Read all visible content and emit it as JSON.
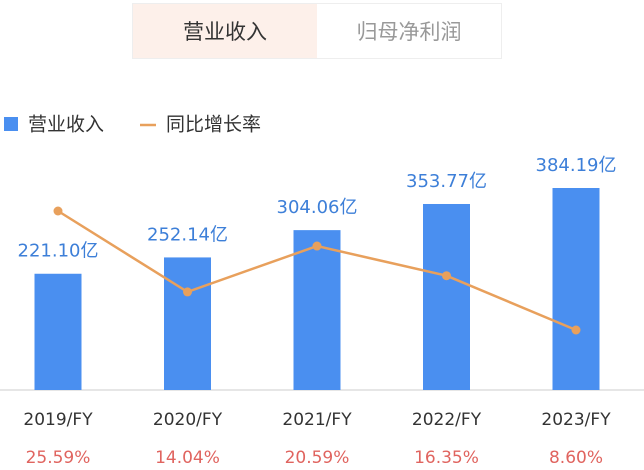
{
  "tabs": [
    {
      "label": "营业收入",
      "active": true
    },
    {
      "label": "归母净利润",
      "active": false
    }
  ],
  "chart_data": {
    "type": "bar",
    "categories": [
      "2019/FY",
      "2020/FY",
      "2021/FY",
      "2022/FY",
      "2023/FY"
    ],
    "series": [
      {
        "name": "营业收入",
        "color": "#4a8ff0",
        "values": [
          221.1,
          252.14,
          304.06,
          353.77,
          384.19
        ],
        "value_labels": [
          "221.10亿",
          "252.14亿",
          "304.06亿",
          "353.77亿",
          "384.19亿"
        ]
      },
      {
        "name": "同比增长率",
        "type": "line",
        "color": "#e8a05c",
        "values": [
          25.59,
          14.04,
          20.59,
          16.35,
          8.6
        ],
        "value_labels": [
          "25.59%",
          "14.04%",
          "20.59%",
          "16.35%",
          "8.60%"
        ]
      }
    ]
  }
}
